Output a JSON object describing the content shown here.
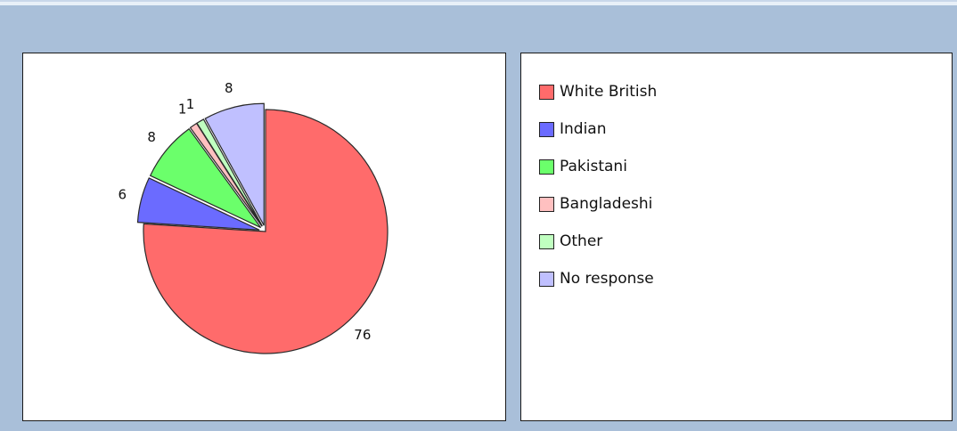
{
  "chart_data": {
    "type": "pie",
    "categories": [
      "White British",
      "Indian",
      "Pakistani",
      "Bangladeshi",
      "Other",
      "No response"
    ],
    "values": [
      76,
      6,
      8,
      1,
      1,
      8
    ],
    "data_labels": [
      "76",
      "6",
      "8",
      "1",
      "1",
      "8"
    ],
    "colors": [
      "#ff6b6b",
      "#6b6bff",
      "#6bff6b",
      "#ffc0c0",
      "#c0ffc0",
      "#c0c0ff"
    ],
    "exploded": [
      false,
      true,
      true,
      true,
      true,
      true
    ],
    "legend_position": "right",
    "title": "",
    "start_angle": "12 o'clock",
    "direction": "clockwise"
  }
}
